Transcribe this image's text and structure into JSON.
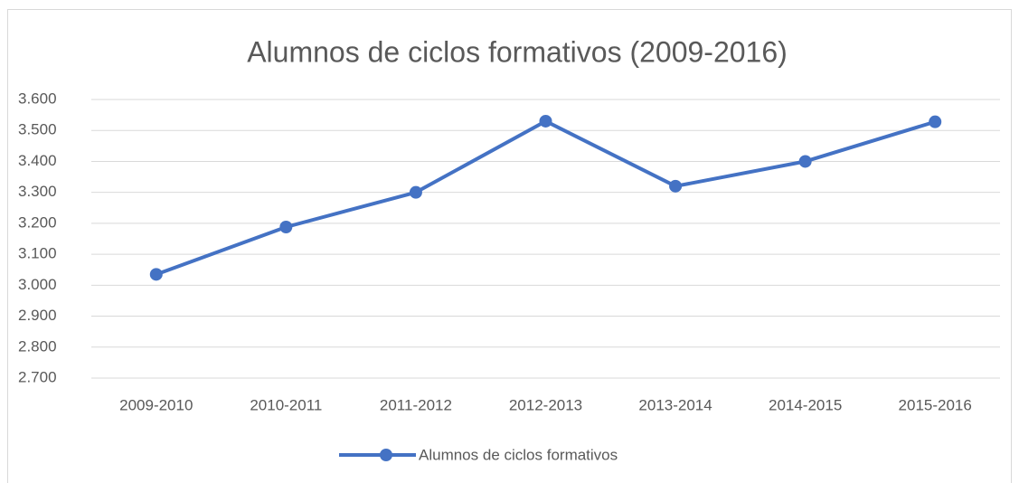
{
  "chart_data": {
    "type": "line",
    "title": "Alumnos de ciclos formativos (2009-2016)",
    "categories": [
      "2009-2010",
      "2010-2011",
      "2011-2012",
      "2012-2013",
      "2013-2014",
      "2014-2015",
      "2015-2016"
    ],
    "series": [
      {
        "name": "Alumnos de ciclos formativos",
        "color": "#4472c4",
        "values": [
          3035,
          3188,
          3300,
          3530,
          3320,
          3400,
          3528
        ]
      }
    ],
    "ylim": [
      2700,
      3600
    ],
    "yticks": [
      {
        "value": 2700,
        "label": "2.700"
      },
      {
        "value": 2800,
        "label": "2.800"
      },
      {
        "value": 2900,
        "label": "2.900"
      },
      {
        "value": 3000,
        "label": "3.000"
      },
      {
        "value": 3100,
        "label": "3.100"
      },
      {
        "value": 3200,
        "label": "3.200"
      },
      {
        "value": 3300,
        "label": "3.300"
      },
      {
        "value": 3400,
        "label": "3.400"
      },
      {
        "value": 3500,
        "label": "3.500"
      },
      {
        "value": 3600,
        "label": "3.600"
      }
    ],
    "grid": true,
    "legend": "bottom"
  }
}
